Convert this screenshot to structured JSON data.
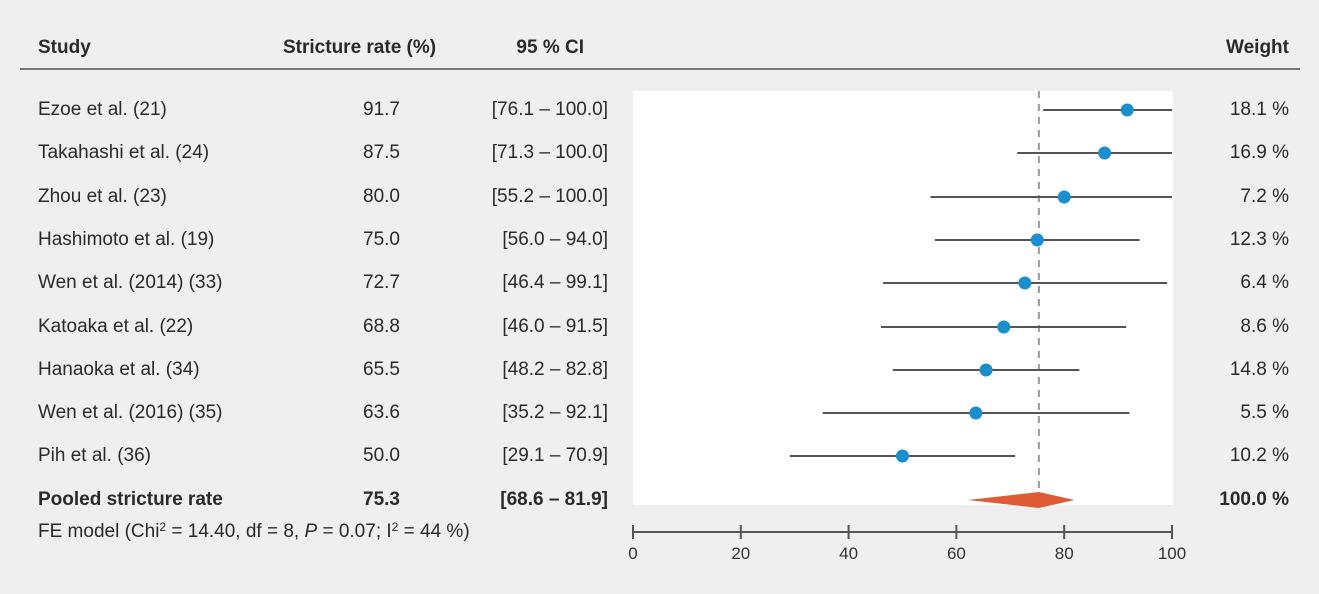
{
  "headers": {
    "study": "Study",
    "rate": "Stricture rate (%)",
    "ci": "95 % CI",
    "weight": "Weight"
  },
  "footer": {
    "prefix": "FE model (Chi",
    "chi_sup": "2",
    "chi_value": " = 14.40, df = 8, ",
    "p_label": "P",
    "p_value": " = 0.07; I",
    "i_sup": "2",
    "i_value": " = 44 %)"
  },
  "colors": {
    "background": "#efefef",
    "plot_background": "#ffffff",
    "point": "#1b8fce",
    "diamond": "#de5b35",
    "line": "#555555",
    "reference_line": "#999999"
  },
  "chart_data": {
    "type": "forest",
    "xlim": [
      0,
      100
    ],
    "xticks": [
      0,
      20,
      40,
      60,
      80,
      100
    ],
    "reference_value": 75.3,
    "reference_line_style": "dashed",
    "studies": [
      {
        "name": "Ezoe et al. (21)",
        "rate_label": "91.7",
        "ci_label": "[76.1 – 100.0]",
        "weight_label": "18.1 %",
        "estimate": 91.7,
        "ci_low": 76.1,
        "ci_high": 100.0
      },
      {
        "name": "Takahashi et al. (24)",
        "rate_label": "87.5",
        "ci_label": "[71.3 – 100.0]",
        "weight_label": "16.9 %",
        "estimate": 87.5,
        "ci_low": 71.3,
        "ci_high": 100.0
      },
      {
        "name": "Zhou et al. (23)",
        "rate_label": "80.0",
        "ci_label": "[55.2 – 100.0]",
        "weight_label": "7.2 %",
        "estimate": 80.0,
        "ci_low": 55.2,
        "ci_high": 100.0
      },
      {
        "name": "Hashimoto et al. (19)",
        "rate_label": "75.0",
        "ci_label": "[56.0 – 94.0]",
        "weight_label": "12.3 %",
        "estimate": 75.0,
        "ci_low": 56.0,
        "ci_high": 94.0
      },
      {
        "name": "Wen et al. (2014) (33)",
        "rate_label": "72.7",
        "ci_label": "[46.4 – 99.1]",
        "weight_label": "6.4 %",
        "estimate": 72.7,
        "ci_low": 46.4,
        "ci_high": 99.1
      },
      {
        "name": "Katoaka et al. (22)",
        "rate_label": "68.8",
        "ci_label": "[46.0 – 91.5]",
        "weight_label": "8.6 %",
        "estimate": 68.8,
        "ci_low": 46.0,
        "ci_high": 91.5
      },
      {
        "name": "Hanaoka et al. (34)",
        "rate_label": "65.5",
        "ci_label": "[48.2 – 82.8]",
        "weight_label": "14.8 %",
        "estimate": 65.5,
        "ci_low": 48.2,
        "ci_high": 82.8
      },
      {
        "name": "Wen et al. (2016) (35)",
        "rate_label": "63.6",
        "ci_label": "[35.2 – 92.1]",
        "weight_label": "5.5 %",
        "estimate": 63.6,
        "ci_low": 35.2,
        "ci_high": 92.1
      },
      {
        "name": "Pih et al. (36)",
        "rate_label": "50.0",
        "ci_label": "[29.1 – 70.9]",
        "weight_label": "10.2 %",
        "estimate": 50.0,
        "ci_low": 29.1,
        "ci_high": 70.9
      }
    ],
    "pooled": {
      "name": "Pooled stricture rate",
      "rate_label": "75.3",
      "ci_label": "[68.6 – 81.9]",
      "weight_label": "100.0 %",
      "estimate": 75.3,
      "ci_low": 68.6,
      "ci_high": 81.9
    }
  }
}
